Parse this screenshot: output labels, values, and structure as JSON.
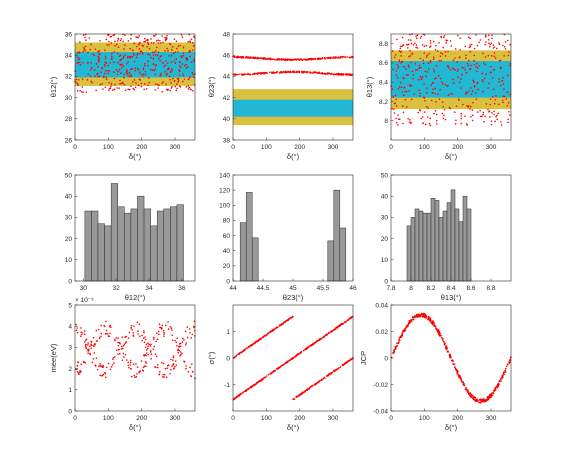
{
  "colors": {
    "point": "#ff0000",
    "outer_band": "#d9c13f",
    "inner_band": "#22b8d4",
    "bar": "#999999",
    "bar_edge": "#2b2b2b",
    "axis": "#262626"
  },
  "chart_data": [
    {
      "id": "theta12_vs_delta",
      "type": "scatter",
      "xlabel": "δ(°)",
      "ylabel": "θ12(°)",
      "xlim": [
        0,
        360
      ],
      "ylim": [
        26,
        36
      ],
      "xticks": [
        "0",
        "100",
        "200",
        "300"
      ],
      "yticks": [
        "26",
        "28",
        "30",
        "32",
        "34",
        "36"
      ],
      "bands": [
        {
          "color": "outer_band",
          "y": [
            31.1,
            35.2
          ]
        },
        {
          "color": "inner_band",
          "y": [
            31.9,
            34.3
          ]
        }
      ],
      "scatter": {
        "kind": "uniform",
        "y": [
          30.5,
          36.0
        ],
        "n": 450,
        "seed": 11
      }
    },
    {
      "id": "theta23_vs_delta",
      "type": "scatter",
      "xlabel": "δ(°)",
      "ylabel": "θ23(°)",
      "xlim": [
        0,
        360
      ],
      "ylim": [
        38,
        48
      ],
      "xticks": [
        "0",
        "100",
        "200",
        "300"
      ],
      "yticks": [
        "38",
        "40",
        "42",
        "44",
        "46",
        "48"
      ],
      "bands": [
        {
          "color": "outer_band",
          "y": [
            39.4,
            42.8
          ]
        },
        {
          "color": "inner_band",
          "y": [
            40.2,
            41.8
          ]
        }
      ],
      "scatter": {
        "kind": "curves",
        "n": 250,
        "seed": 23,
        "jitter": 0.06,
        "curves": [
          {
            "mid": 45.7,
            "amp": 0.13,
            "phase": 0
          },
          {
            "mid": 44.3,
            "amp": -0.13,
            "phase": 0
          }
        ]
      }
    },
    {
      "id": "theta13_vs_delta",
      "type": "scatter",
      "xlabel": "δ(°)",
      "ylabel": "θ13(°)",
      "xlim": [
        0,
        360
      ],
      "ylim": [
        7.8,
        8.9
      ],
      "xticks": [
        "0",
        "100",
        "200",
        "300"
      ],
      "yticks": [
        "8",
        "8.2",
        "8.4",
        "8.6",
        "8.8"
      ],
      "bands": [
        {
          "color": "outer_band",
          "y": [
            8.12,
            8.73
          ]
        },
        {
          "color": "inner_band",
          "y": [
            8.24,
            8.62
          ]
        }
      ],
      "scatter": {
        "kind": "uniform",
        "y": [
          7.95,
          8.9
        ],
        "n": 450,
        "seed": 37
      }
    },
    {
      "id": "theta12_hist",
      "type": "bar",
      "xlabel": "θ12(°)",
      "ylabel": "",
      "xlim": [
        29.5,
        36.8
      ],
      "ylim": [
        0,
        50
      ],
      "xticks": [
        "30",
        "32",
        "34",
        "36"
      ],
      "yticks": [
        "0",
        "10",
        "20",
        "30",
        "40",
        "50"
      ],
      "bins": [
        {
          "from": 30.1,
          "to": 30.5,
          "count": 33
        },
        {
          "from": 30.5,
          "to": 30.9,
          "count": 33
        },
        {
          "from": 30.9,
          "to": 31.3,
          "count": 27
        },
        {
          "from": 31.3,
          "to": 31.7,
          "count": 26
        },
        {
          "from": 31.7,
          "to": 32.1,
          "count": 46
        },
        {
          "from": 32.1,
          "to": 32.5,
          "count": 35
        },
        {
          "from": 32.5,
          "to": 32.9,
          "count": 32
        },
        {
          "from": 32.9,
          "to": 33.3,
          "count": 34
        },
        {
          "from": 33.3,
          "to": 33.7,
          "count": 40
        },
        {
          "from": 33.7,
          "to": 34.1,
          "count": 34
        },
        {
          "from": 34.1,
          "to": 34.5,
          "count": 26
        },
        {
          "from": 34.5,
          "to": 34.9,
          "count": 33
        },
        {
          "from": 34.9,
          "to": 35.3,
          "count": 34
        },
        {
          "from": 35.3,
          "to": 35.7,
          "count": 35
        },
        {
          "from": 35.7,
          "to": 36.1,
          "count": 36
        }
      ]
    },
    {
      "id": "theta23_hist",
      "type": "bar",
      "xlabel": "θ23(°)",
      "ylabel": "",
      "xlim": [
        44,
        46
      ],
      "ylim": [
        0,
        140
      ],
      "xticks": [
        "44",
        "44.5",
        "45",
        "45.5",
        "46"
      ],
      "yticks": [
        "0",
        "20",
        "40",
        "60",
        "80",
        "100",
        "120",
        "140"
      ],
      "bins": [
        {
          "from": 44.12,
          "to": 44.22,
          "count": 77
        },
        {
          "from": 44.22,
          "to": 44.32,
          "count": 117
        },
        {
          "from": 44.32,
          "to": 44.42,
          "count": 57
        },
        {
          "from": 45.58,
          "to": 45.68,
          "count": 53
        },
        {
          "from": 45.68,
          "to": 45.78,
          "count": 120
        },
        {
          "from": 45.78,
          "to": 45.88,
          "count": 70
        }
      ]
    },
    {
      "id": "theta13_hist",
      "type": "bar",
      "xlabel": "θ13(°)",
      "ylabel": "",
      "xlim": [
        7.8,
        9.0
      ],
      "ylim": [
        0,
        50
      ],
      "xticks": [
        "7.8",
        "8",
        "8.2",
        "8.4",
        "8.6",
        "8.8"
      ],
      "yticks": [
        "0",
        "10",
        "20",
        "30",
        "40",
        "50"
      ],
      "bins": [
        {
          "from": 7.96,
          "to": 8.0,
          "count": 26
        },
        {
          "from": 8.0,
          "to": 8.04,
          "count": 30
        },
        {
          "from": 8.04,
          "to": 8.08,
          "count": 34
        },
        {
          "from": 8.08,
          "to": 8.12,
          "count": 33
        },
        {
          "from": 8.12,
          "to": 8.16,
          "count": 32
        },
        {
          "from": 8.16,
          "to": 8.2,
          "count": 32
        },
        {
          "from": 8.2,
          "to": 8.24,
          "count": 39
        },
        {
          "from": 8.24,
          "to": 8.28,
          "count": 38
        },
        {
          "from": 8.28,
          "to": 8.32,
          "count": 30
        },
        {
          "from": 8.32,
          "to": 8.36,
          "count": 33
        },
        {
          "from": 8.36,
          "to": 8.4,
          "count": 37
        },
        {
          "from": 8.4,
          "to": 8.44,
          "count": 43
        },
        {
          "from": 8.44,
          "to": 8.48,
          "count": 34
        },
        {
          "from": 8.48,
          "to": 8.52,
          "count": 28
        },
        {
          "from": 8.52,
          "to": 8.56,
          "count": 40
        },
        {
          "from": 8.56,
          "to": 8.6,
          "count": 34
        }
      ]
    },
    {
      "id": "mee_vs_delta",
      "type": "scatter",
      "xlabel": "δ(°)",
      "ylabel": "mee(eV)",
      "xlim": [
        0,
        360
      ],
      "ylim": [
        0,
        0.005
      ],
      "xticks": [
        "0",
        "100",
        "200",
        "300"
      ],
      "yticks": [
        "0",
        "1",
        "2",
        "3",
        "4",
        "5"
      ],
      "exponent_label": "× 10⁻³",
      "scatter": {
        "kind": "curves",
        "n": 160,
        "seed": 53,
        "jitter": 0.00038,
        "curves": [
          {
            "mid": 0.0029,
            "amp": 0.001,
            "phase": 0
          },
          {
            "mid": 0.0029,
            "amp": -0.001,
            "phase": 0
          }
        ],
        "period": 180
      }
    },
    {
      "id": "sigma_vs_delta",
      "type": "scatter",
      "xlabel": "δ(°)",
      "ylabel": "σ(°)",
      "xlim": [
        0,
        360
      ],
      "ylim": [
        -2,
        2
      ],
      "xticks": [
        "0",
        "100",
        "200",
        "300"
      ],
      "yticks": [
        "-1",
        "0",
        "1"
      ],
      "scatter": {
        "kind": "lines",
        "n": 160,
        "seed": 61,
        "jitter": 0.02,
        "lines": [
          {
            "x": [
              0,
              180
            ],
            "y": [
              0.0,
              1.57
            ]
          },
          {
            "x": [
              0,
              180
            ],
            "y": [
              -1.57,
              0.0
            ]
          },
          {
            "x": [
              180,
              360
            ],
            "y": [
              0.0,
              1.57
            ]
          },
          {
            "x": [
              180,
              360
            ],
            "y": [
              -1.57,
              0.0
            ]
          }
        ]
      }
    },
    {
      "id": "jcp_vs_delta",
      "type": "scatter",
      "xlabel": "δ(°)",
      "ylabel": "JCP",
      "xlim": [
        0,
        360
      ],
      "ylim": [
        -0.04,
        0.04
      ],
      "xticks": [
        "0",
        "100",
        "200",
        "300"
      ],
      "yticks": [
        "-0.04",
        "-0.02",
        "0",
        "0.02",
        "0.04"
      ],
      "scatter": {
        "kind": "curves",
        "n": 450,
        "seed": 79,
        "jitter": 0.0014,
        "curves": [
          {
            "mid": 0,
            "amp": 0.0325,
            "phase": 0,
            "shape": "sin"
          }
        ]
      }
    }
  ]
}
